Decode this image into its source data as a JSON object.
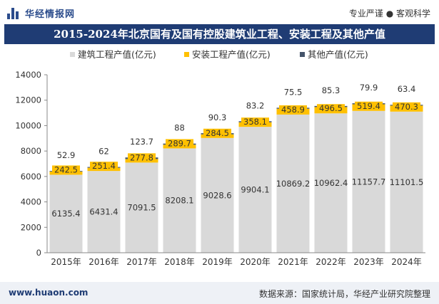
{
  "header": {
    "brand": "华经情报网",
    "slogan": "专业严谨 ● 客观科学"
  },
  "footer": {
    "website": "www.huaon.com",
    "source": "数据来源：国家统计局，华经产业研究院整理"
  },
  "colors": {
    "title_bg": "#1f3c74",
    "construction": "#d9d9d9",
    "installation": "#ffc000",
    "other": "#44546a"
  },
  "chart_data": {
    "type": "bar",
    "stacked": true,
    "title": "2015-2024年北京国有及国有控股建筑业工程、安装工程及其他产值",
    "categories": [
      "2015年",
      "2016年",
      "2017年",
      "2018年",
      "2019年",
      "2020年",
      "2021年",
      "2022年",
      "2023年",
      "2024年"
    ],
    "series": [
      {
        "name": "建筑工程产值(亿元)",
        "color": "#d9d9d9",
        "values": [
          6135.4,
          6431.4,
          7091.5,
          8208.1,
          9028.6,
          9904.1,
          10869.2,
          10962.4,
          11157.7,
          11101.5
        ],
        "labels": [
          "6135.4",
          "6431.4",
          "7091.5",
          "8208.1",
          "9028.6",
          "9904.1",
          "10869.2",
          "10962.4",
          "11157.7",
          "11101.5"
        ]
      },
      {
        "name": "安装工程产值(亿元)",
        "color": "#ffc000",
        "values": [
          242.5,
          251.4,
          277.8,
          289.7,
          284.5,
          358.1,
          458.9,
          496.5,
          519.4,
          470.3
        ],
        "labels": [
          "242.5",
          "251.4",
          "277.8",
          "289.7",
          "284.5",
          "358.1",
          "458.9",
          "496.5",
          "519.4",
          "470.3"
        ]
      },
      {
        "name": "其他产值(亿元)",
        "color": "#44546a",
        "values": [
          52.9,
          62,
          123.7,
          88,
          90.3,
          83.2,
          75.5,
          85.3,
          79.9,
          63.4
        ],
        "labels": [
          "52.9",
          "62",
          "123.7",
          "88",
          "90.3",
          "83.2",
          "75.5",
          "85.3",
          "79.9",
          "63.4"
        ]
      }
    ],
    "ylim": [
      0,
      14000
    ],
    "yticks": [
      "0",
      "2000",
      "4000",
      "6000",
      "8000",
      "10000",
      "12000",
      "14000"
    ],
    "ytick_values": [
      0,
      2000,
      4000,
      6000,
      8000,
      10000,
      12000,
      14000
    ],
    "legend_position": "top",
    "grid": false
  }
}
